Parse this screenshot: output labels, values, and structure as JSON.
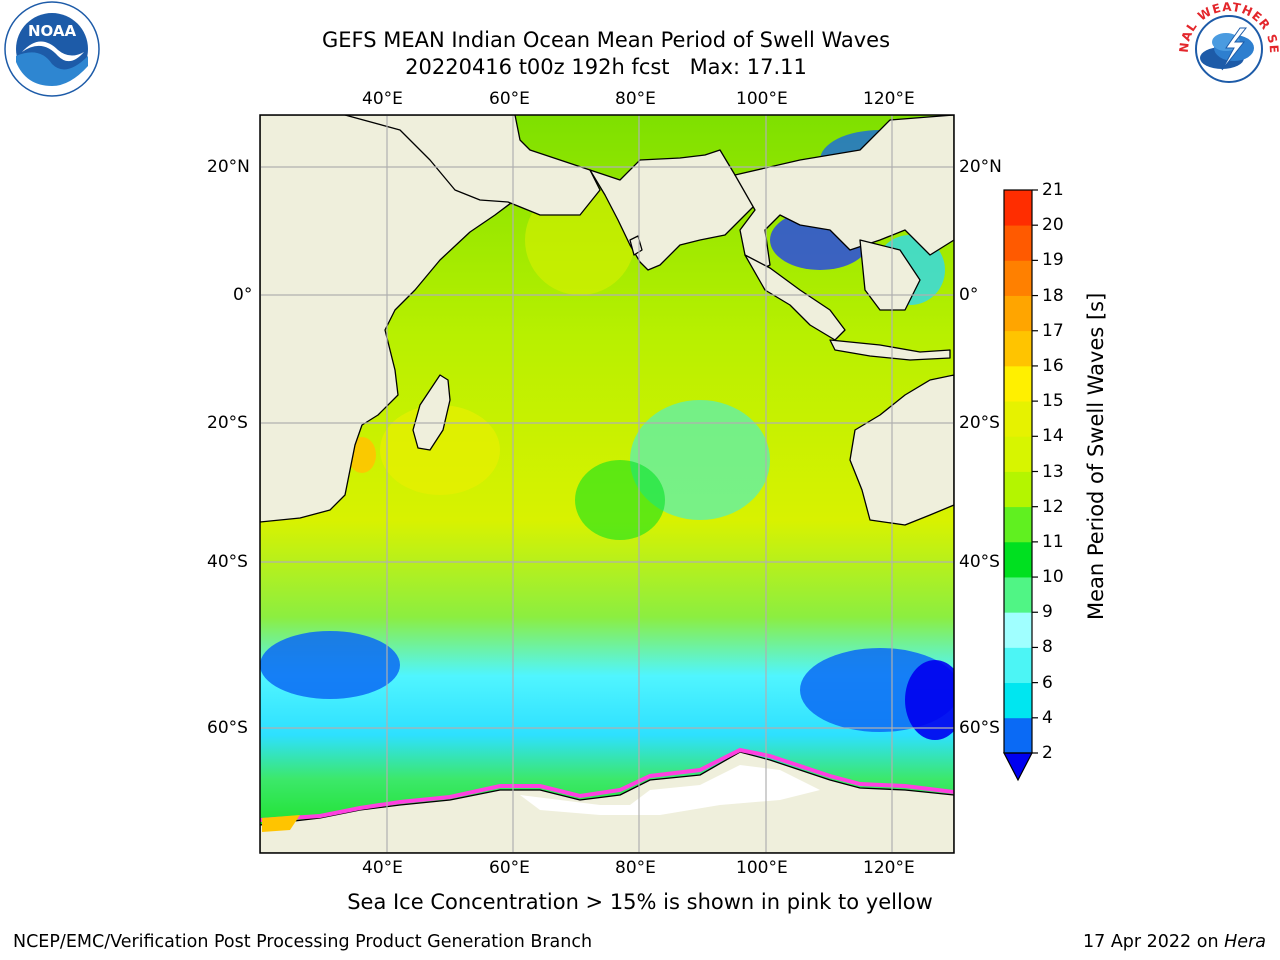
{
  "title": {
    "line1": "GEFS MEAN Indian Ocean Mean Period of Swell Waves",
    "line2": "20220416 t00z 192h fcst   Max: 17.11"
  },
  "map": {
    "lon_ticks": [
      "40°E",
      "60°E",
      "80°E",
      "100°E",
      "120°E"
    ],
    "lat_ticks": [
      "20°N",
      "0°",
      "20°S",
      "40°S",
      "60°S"
    ],
    "land_color": "#efefdc",
    "grid_color": "#b0b0b0"
  },
  "colorbar": {
    "label": "Mean Period of Swell Waves [s]",
    "ticks": [
      "2",
      "4",
      "6",
      "8",
      "9",
      "10",
      "11",
      "12",
      "13",
      "14",
      "15",
      "16",
      "17",
      "18",
      "19",
      "20",
      "21"
    ],
    "colors": [
      "#0a6af5",
      "#00e6f0",
      "#4cf5f5",
      "#a0ffff",
      "#50f585",
      "#00e020",
      "#60f020",
      "#b4f500",
      "#d7f500",
      "#e6f200",
      "#fff000",
      "#ffc400",
      "#ffa500",
      "#ff8000",
      "#ff5a00",
      "#ff2d00"
    ],
    "under_color": "#0000f0",
    "over_color": "#ff0000"
  },
  "footnote": "Sea Ice Concentration > 15% is shown in pink to yellow",
  "credits": "NCEP/EMC/Verification Post Processing Product Generation Branch",
  "run_info": {
    "date": "17 Apr 2022 on",
    "host": "Hera"
  },
  "logos": {
    "left_text": "NOAA",
    "right_text": "NATIONAL WEATHER SERVICE",
    "noaa_blue": "#1d5ba8",
    "nws_red": "#e3262b"
  }
}
